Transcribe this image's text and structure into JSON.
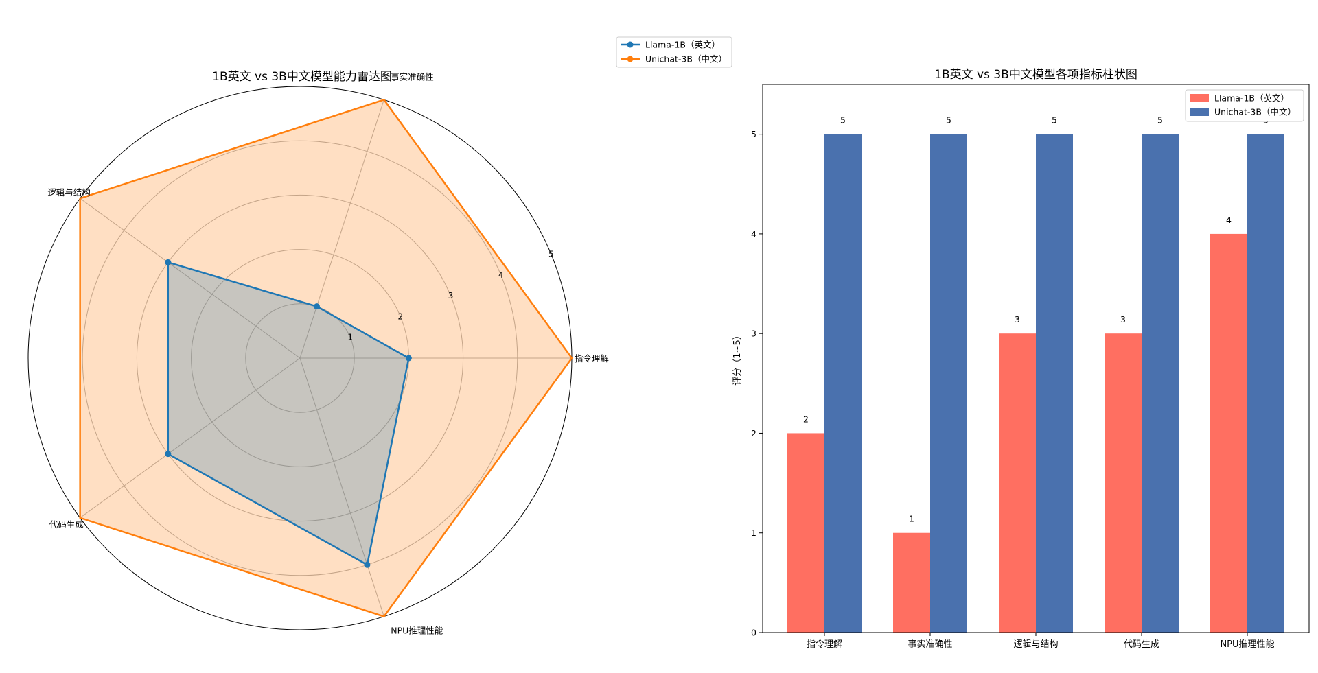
{
  "chart_data": [
    {
      "type": "radar",
      "title": "1B英文 vs 3B中文模型能力雷达图",
      "axes": [
        "指令理解",
        "事实准确性",
        "逻辑与结构",
        "代码生成",
        "NPU推理性能"
      ],
      "rlim": [
        0,
        5
      ],
      "rticks": [
        1,
        2,
        3,
        4,
        5
      ],
      "grid": true,
      "series": [
        {
          "name": "Llama-1B（英文）",
          "values": [
            2,
            1,
            3,
            3,
            4
          ],
          "color": "#1f77b4"
        },
        {
          "name": "Unichat-3B（中文）",
          "values": [
            5,
            5,
            5,
            5,
            5
          ],
          "color": "#ff7f0e"
        }
      ],
      "legend": [
        "Llama-1B（英文）",
        "Unichat-3B（中文）"
      ],
      "legend_position": "top-right (outside)"
    },
    {
      "type": "bar",
      "title": "1B英文 vs 3B中文模型各项指标柱状图",
      "categories": [
        "指令理解",
        "事实准确性",
        "逻辑与结构",
        "代码生成",
        "NPU推理性能"
      ],
      "series": [
        {
          "name": "Llama-1B（英文）",
          "values": [
            2,
            1,
            3,
            3,
            4
          ],
          "color": "#ff6f61"
        },
        {
          "name": "Unichat-3B（中文）",
          "values": [
            5,
            5,
            5,
            5,
            5
          ],
          "color": "#4a71ae"
        }
      ],
      "xlabel": "",
      "ylabel": "评分（1~5）",
      "ylim": [
        0,
        5.5
      ],
      "yticks": [
        0,
        1,
        2,
        3,
        4,
        5
      ],
      "legend": [
        "Llama-1B（英文）",
        "Unichat-3B（中文）"
      ],
      "legend_position": "top-right"
    }
  ]
}
